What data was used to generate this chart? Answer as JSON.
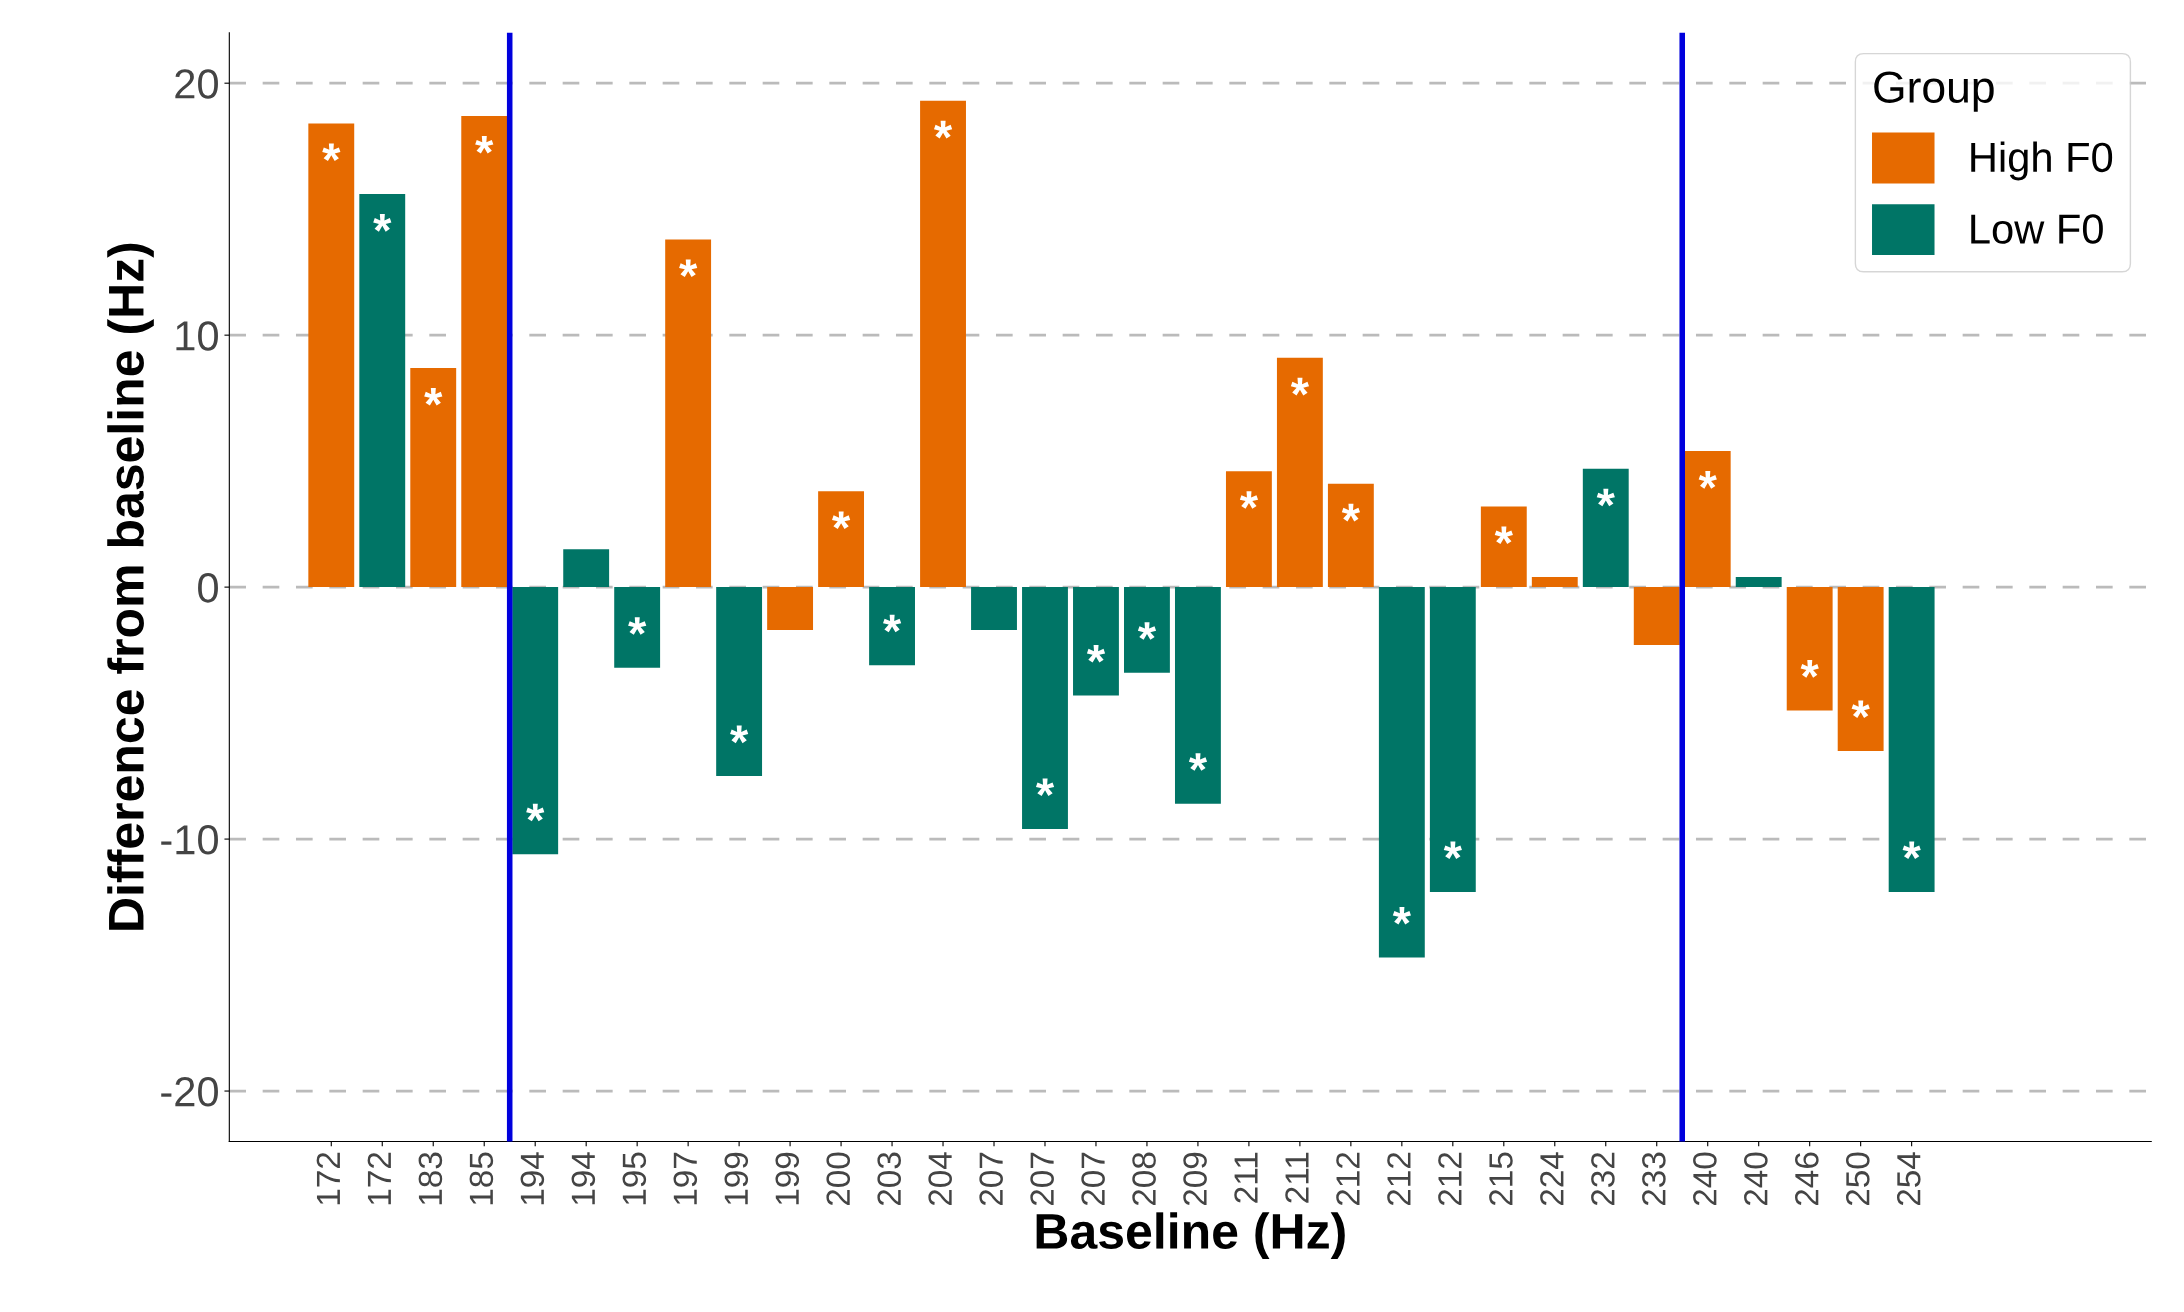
{
  "chart_data": {
    "type": "bar",
    "xlabel": "Baseline (Hz)",
    "ylabel": "Difference from baseline (Hz)",
    "legend_title": "Group",
    "legend": "top right",
    "grid": "y",
    "categories": [
      "172",
      "172",
      "183",
      "185",
      "194",
      "194",
      "195",
      "197",
      "199",
      "199",
      "200",
      "203",
      "204",
      "207",
      "207",
      "207",
      "208",
      "209",
      "211",
      "211",
      "212",
      "212",
      "212",
      "215",
      "224",
      "232",
      "233",
      "240",
      "240",
      "246",
      "250",
      "254"
    ],
    "series": [
      {
        "name": "High F0",
        "color": "#e66a00",
        "values": [
          18.4,
          null,
          8.7,
          18.7,
          null,
          null,
          null,
          13.8,
          null,
          -1.7,
          3.8,
          null,
          19.3,
          null,
          null,
          null,
          null,
          null,
          4.6,
          9.1,
          4.1,
          null,
          null,
          3.2,
          0.4,
          null,
          -2.3,
          5.4,
          null,
          -4.9,
          -6.5,
          null
        ],
        "value_labels": [
          "*",
          null,
          "*",
          "*",
          null,
          null,
          null,
          "*",
          null,
          null,
          "*",
          null,
          "*",
          null,
          null,
          null,
          null,
          null,
          "*",
          "*",
          "*",
          null,
          null,
          "*",
          null,
          null,
          null,
          "*",
          null,
          "*",
          "*",
          null
        ]
      },
      {
        "name": "Low F0",
        "color": "#007566",
        "values": [
          null,
          15.6,
          null,
          null,
          -10.6,
          1.5,
          -3.2,
          null,
          -7.5,
          null,
          null,
          -3.1,
          null,
          -1.7,
          -9.6,
          -4.3,
          -3.4,
          -8.6,
          null,
          null,
          null,
          -14.7,
          -12.1,
          null,
          null,
          4.7,
          null,
          null,
          0.4,
          null,
          null,
          -12.1
        ],
        "value_labels": [
          null,
          "*",
          null,
          null,
          "*",
          null,
          "*",
          null,
          "*",
          null,
          null,
          "*",
          null,
          null,
          "*",
          "*",
          "*",
          "*",
          null,
          null,
          null,
          "*",
          "*",
          null,
          null,
          "*",
          null,
          null,
          null,
          null,
          null,
          "*"
        ]
      }
    ],
    "ylim": [
      -22,
      22
    ],
    "yticks": [
      -20,
      -10,
      0,
      10,
      20
    ]
  }
}
